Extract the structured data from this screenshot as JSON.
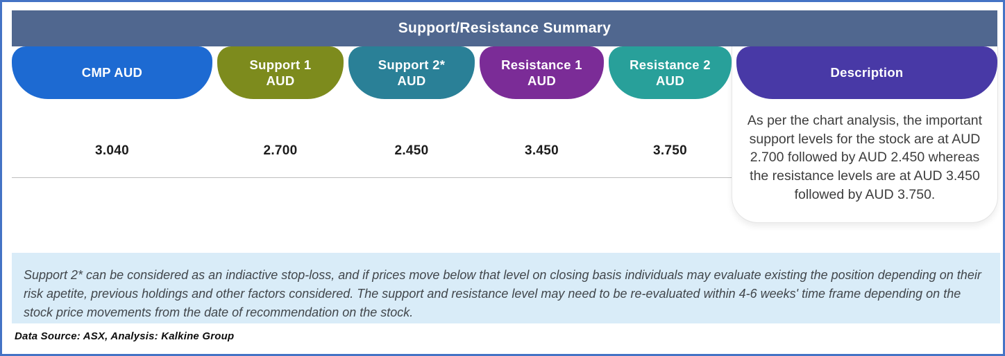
{
  "header": {
    "title": "Support/Resistance Summary",
    "bg_color": "#50678f"
  },
  "columns": [
    {
      "label": "CMP AUD",
      "value": "3.040",
      "color": "#1d6ad2"
    },
    {
      "label": "Support 1\nAUD",
      "value": "2.700",
      "color": "#7d8b1d"
    },
    {
      "label": "Support 2*\nAUD",
      "value": "2.450",
      "color": "#2a8097"
    },
    {
      "label": "Resistance 1\nAUD",
      "value": "3.450",
      "color": "#7b2c97"
    },
    {
      "label": "Resistance 2\nAUD",
      "value": "3.750",
      "color": "#28a09a"
    }
  ],
  "description": {
    "label": "Description",
    "color": "#4839a6",
    "text": "As per the chart analysis, the important support levels for the stock are at AUD 2.700 followed by AUD 2.450 whereas the resistance levels are at AUD 3.450 followed by AUD 3.750."
  },
  "note": {
    "bg_color": "#d9ecf8",
    "text": "Support 2* can be considered as an indiactive stop-loss, and if prices move below that level on closing basis individuals may evaluate existing the position depending on their risk apetite, previous holdings and other factors considered. The support and resistance level may need to be re-evaluated within 4-6 weeks' time frame depending on the stock price movements from  the date of recommendation on the stock."
  },
  "footer": {
    "text": "Data Source: ASX, Analysis: Kalkine Group"
  },
  "frame": {
    "border_color": "#4473c5"
  },
  "chart_data": {
    "type": "table",
    "title": "Support/Resistance Summary",
    "columns": [
      "CMP AUD",
      "Support 1 AUD",
      "Support 2* AUD",
      "Resistance 1 AUD",
      "Resistance 2 AUD",
      "Description"
    ],
    "rows": [
      [
        "3.040",
        "2.700",
        "2.450",
        "3.450",
        "3.750",
        "As per the chart analysis, the important support levels for the stock are at AUD 2.700 followed by AUD 2.450 whereas the resistance levels are at AUD 3.450 followed by AUD 3.750."
      ]
    ],
    "currency": "AUD",
    "legend_position": "none",
    "grid": false
  }
}
